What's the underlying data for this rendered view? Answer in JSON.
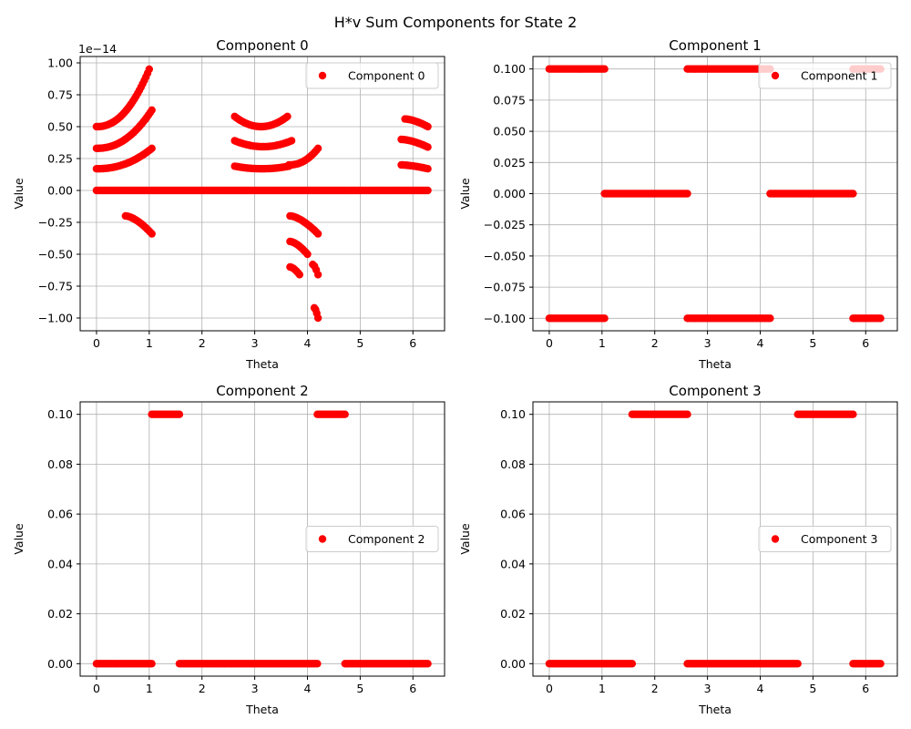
{
  "figure": {
    "title": "H*v Sum Components for State 2",
    "marker_color": "#ff0000"
  },
  "chart_data": [
    {
      "type": "scatter",
      "title": "Component 0",
      "xlabel": "Theta",
      "ylabel": "Value",
      "legend": "Component 0",
      "legend_position": "upper right",
      "grid": true,
      "xlim": [
        -0.31,
        6.6
      ],
      "ylim": [
        -1.1,
        1.05
      ],
      "xticks": [
        0,
        1,
        2,
        3,
        4,
        5,
        6
      ],
      "xtick_labels": [
        "0",
        "1",
        "2",
        "3",
        "4",
        "5",
        "6"
      ],
      "yticks": [
        -1.0,
        -0.75,
        -0.5,
        -0.25,
        0.0,
        0.25,
        0.5,
        0.75,
        1.0
      ],
      "ytick_labels": [
        "−1.00",
        "−0.75",
        "−0.50",
        "−0.25",
        "0.00",
        "0.25",
        "0.50",
        "0.75",
        "1.00"
      ],
      "y_offset_text": "1e−14",
      "y_unit_scale": 1e-14,
      "x_range": [
        0,
        6.283
      ],
      "point_count": 200,
      "series_note": "values shown as multiples of 1e-14",
      "zero_band": [
        [
          0,
          6.283,
          0
        ]
      ],
      "curves": [
        {
          "x_start": 0.0,
          "x_end": 1.05,
          "y_start": 0.17,
          "y_end": 0.33,
          "shape": "rise"
        },
        {
          "x_start": 0.0,
          "x_end": 1.05,
          "y_start": 0.33,
          "y_end": 0.63,
          "shape": "rise"
        },
        {
          "x_start": 0.0,
          "x_end": 1.0,
          "y_start": 0.5,
          "y_end": 0.95,
          "shape": "rise"
        },
        {
          "x_start": 0.55,
          "x_end": 1.05,
          "y_start": -0.2,
          "y_end": -0.34,
          "shape": "fall"
        },
        {
          "x_start": 2.62,
          "x_end": 3.65,
          "y_start": 0.19,
          "y_end": 0.17,
          "shape": "bowl_min_mid"
        },
        {
          "x_start": 3.65,
          "x_end": 4.2,
          "y_start": 0.2,
          "y_end": 0.33,
          "shape": "rise"
        },
        {
          "x_start": 2.62,
          "x_end": 3.7,
          "y_start": 0.39,
          "y_end": 0.39,
          "shape": "bowl"
        },
        {
          "x_start": 2.62,
          "x_end": 3.62,
          "y_start": 0.58,
          "y_end": 0.57,
          "shape": "bowl"
        },
        {
          "x_start": 3.67,
          "x_end": 4.2,
          "y_start": -0.2,
          "y_end": -0.34,
          "shape": "fall"
        },
        {
          "x_start": 3.67,
          "x_end": 4.0,
          "y_start": -0.4,
          "y_end": -0.5,
          "shape": "fall"
        },
        {
          "x_start": 3.67,
          "x_end": 3.85,
          "y_start": -0.6,
          "y_end": -0.66,
          "shape": "fall"
        },
        {
          "x_start": 4.1,
          "x_end": 4.2,
          "y_start": -0.58,
          "y_end": -0.66,
          "shape": "fall"
        },
        {
          "x_start": 4.13,
          "x_end": 4.2,
          "y_start": -0.92,
          "y_end": -1.0,
          "shape": "fall"
        },
        {
          "x_start": 5.78,
          "x_end": 6.283,
          "y_start": 0.2,
          "y_end": 0.17,
          "shape": "fall"
        },
        {
          "x_start": 5.78,
          "x_end": 6.283,
          "y_start": 0.4,
          "y_end": 0.34,
          "shape": "fall"
        },
        {
          "x_start": 5.85,
          "x_end": 6.283,
          "y_start": 0.56,
          "y_end": 0.5,
          "shape": "fall"
        }
      ]
    },
    {
      "type": "scatter",
      "title": "Component 1",
      "xlabel": "Theta",
      "ylabel": "Value",
      "legend": "Component 1",
      "legend_position": "upper right",
      "grid": true,
      "xlim": [
        -0.31,
        6.6
      ],
      "ylim": [
        -0.11,
        0.11
      ],
      "xticks": [
        0,
        1,
        2,
        3,
        4,
        5,
        6
      ],
      "xtick_labels": [
        "0",
        "1",
        "2",
        "3",
        "4",
        "5",
        "6"
      ],
      "yticks": [
        -0.1,
        -0.075,
        -0.05,
        -0.025,
        0.0,
        0.025,
        0.05,
        0.075,
        0.1
      ],
      "ytick_labels": [
        "−0.100",
        "−0.075",
        "−0.050",
        "−0.025",
        "0.000",
        "0.025",
        "0.050",
        "0.075",
        "0.100"
      ],
      "segments": [
        {
          "x_start": 0.0,
          "x_end": 1.047,
          "y": 0.1
        },
        {
          "x_start": 0.0,
          "x_end": 1.047,
          "y": -0.1
        },
        {
          "x_start": 1.047,
          "x_end": 2.618,
          "y": 0.0
        },
        {
          "x_start": 2.618,
          "x_end": 4.189,
          "y": 0.1
        },
        {
          "x_start": 2.618,
          "x_end": 4.189,
          "y": -0.1
        },
        {
          "x_start": 4.189,
          "x_end": 5.76,
          "y": 0.0
        },
        {
          "x_start": 5.76,
          "x_end": 6.283,
          "y": 0.1
        },
        {
          "x_start": 5.76,
          "x_end": 6.283,
          "y": -0.1
        }
      ]
    },
    {
      "type": "scatter",
      "title": "Component 2",
      "xlabel": "Theta",
      "ylabel": "Value",
      "legend": "Component 2",
      "legend_position": "center right",
      "grid": true,
      "xlim": [
        -0.31,
        6.6
      ],
      "ylim": [
        -0.005,
        0.105
      ],
      "xticks": [
        0,
        1,
        2,
        3,
        4,
        5,
        6
      ],
      "xtick_labels": [
        "0",
        "1",
        "2",
        "3",
        "4",
        "5",
        "6"
      ],
      "yticks": [
        0.0,
        0.02,
        0.04,
        0.06,
        0.08,
        0.1
      ],
      "ytick_labels": [
        "0.00",
        "0.02",
        "0.04",
        "0.06",
        "0.08",
        "0.10"
      ],
      "segments": [
        {
          "x_start": 0.0,
          "x_end": 1.047,
          "y": 0.0
        },
        {
          "x_start": 1.047,
          "x_end": 1.571,
          "y": 0.1
        },
        {
          "x_start": 1.571,
          "x_end": 4.189,
          "y": 0.0
        },
        {
          "x_start": 4.189,
          "x_end": 4.712,
          "y": 0.1
        },
        {
          "x_start": 4.712,
          "x_end": 6.283,
          "y": 0.0
        }
      ]
    },
    {
      "type": "scatter",
      "title": "Component 3",
      "xlabel": "Theta",
      "ylabel": "Value",
      "legend": "Component 3",
      "legend_position": "center right",
      "grid": true,
      "xlim": [
        -0.31,
        6.6
      ],
      "ylim": [
        -0.005,
        0.105
      ],
      "xticks": [
        0,
        1,
        2,
        3,
        4,
        5,
        6
      ],
      "xtick_labels": [
        "0",
        "1",
        "2",
        "3",
        "4",
        "5",
        "6"
      ],
      "yticks": [
        0.0,
        0.02,
        0.04,
        0.06,
        0.08,
        0.1
      ],
      "ytick_labels": [
        "0.00",
        "0.02",
        "0.04",
        "0.06",
        "0.08",
        "0.10"
      ],
      "segments": [
        {
          "x_start": 0.0,
          "x_end": 1.571,
          "y": 0.0
        },
        {
          "x_start": 1.571,
          "x_end": 2.618,
          "y": 0.1
        },
        {
          "x_start": 2.618,
          "x_end": 4.712,
          "y": 0.0
        },
        {
          "x_start": 4.712,
          "x_end": 5.76,
          "y": 0.1
        },
        {
          "x_start": 5.76,
          "x_end": 6.283,
          "y": 0.0
        }
      ]
    }
  ]
}
